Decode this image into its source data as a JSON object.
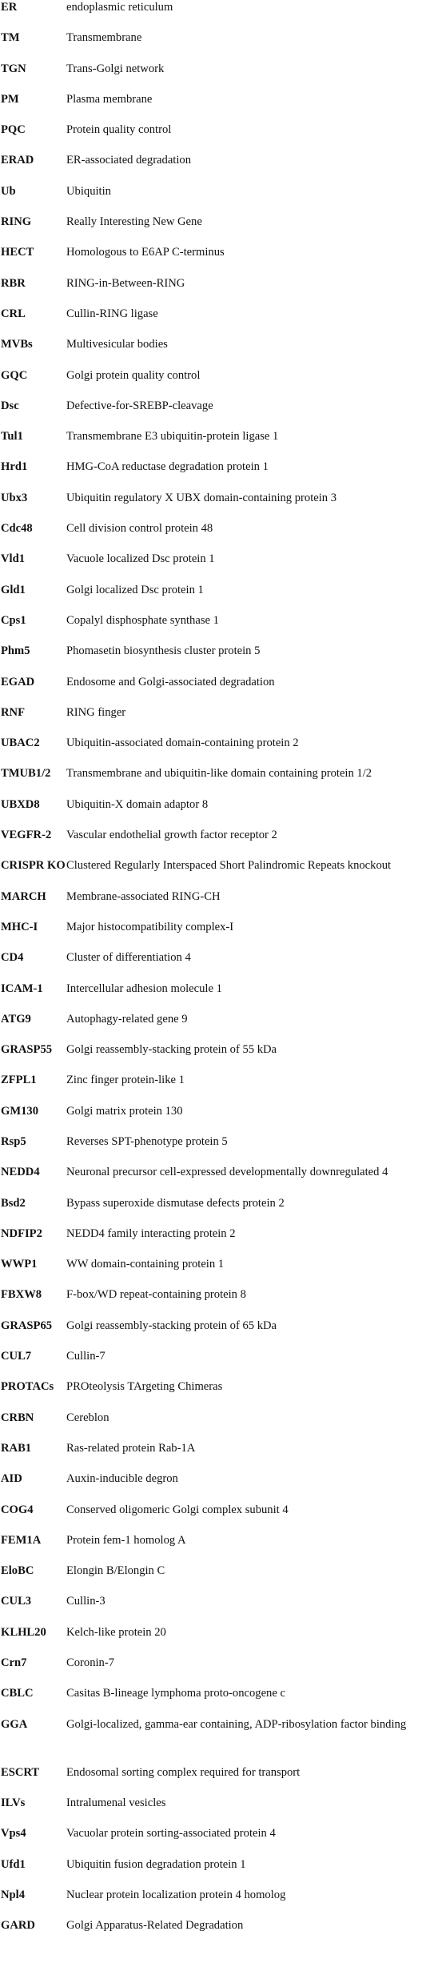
{
  "table": {
    "rows": [
      [
        "ER",
        "endoplasmic reticulum"
      ],
      [
        "TM",
        "Transmembrane"
      ],
      [
        "TGN",
        "Trans-Golgi network"
      ],
      [
        "PM",
        "Plasma membrane"
      ],
      [
        "PQC",
        "Protein quality control"
      ],
      [
        "ERAD",
        "ER-associated degradation"
      ],
      [
        "Ub",
        "Ubiquitin"
      ],
      [
        "RING",
        "Really Interesting New Gene"
      ],
      [
        "HECT",
        "Homologous to E6AP C-terminus"
      ],
      [
        "RBR",
        "RING-in-Between-RING"
      ],
      [
        "CRL",
        "Cullin-RING ligase"
      ],
      [
        "MVBs",
        "Multivesicular bodies"
      ],
      [
        "GQC",
        "Golgi protein quality control"
      ],
      [
        "Dsc",
        "Defective-for-SREBP-cleavage"
      ],
      [
        "Tul1",
        "Transmembrane E3 ubiquitin-protein ligase 1"
      ],
      [
        "Hrd1",
        "HMG-CoA reductase degradation protein 1"
      ],
      [
        "Ubx3",
        "Ubiquitin regulatory X UBX domain-containing protein 3"
      ],
      [
        "Cdc48",
        "Cell division control protein 48"
      ],
      [
        "Vld1",
        "Vacuole localized Dsc protein 1"
      ],
      [
        "Gld1",
        "Golgi localized Dsc protein 1"
      ],
      [
        "Cps1",
        "Copalyl disphosphate synthase 1"
      ],
      [
        "Phm5",
        "Phomasetin biosynthesis cluster protein 5"
      ],
      [
        "EGAD",
        "Endosome and Golgi-associated degradation"
      ],
      [
        "RNF",
        "RING finger"
      ],
      [
        "UBAC2",
        "Ubiquitin-associated domain-containing protein 2"
      ],
      [
        "TMUB1/2",
        "Transmembrane and ubiquitin-like domain containing protein 1/2"
      ],
      [
        "UBXD8",
        "Ubiquitin-X domain adaptor 8"
      ],
      [
        "VEGFR-2",
        "Vascular endothelial growth factor receptor 2"
      ],
      [
        "CRISPR KO",
        "Clustered Regularly Interspaced Short Palindromic Repeats knockout"
      ],
      [
        "MARCH",
        "Membrane-associated RING-CH"
      ],
      [
        "MHC-I",
        "Major histocompatibility complex-I"
      ],
      [
        "CD4",
        "Cluster of differentiation 4"
      ],
      [
        "ICAM-1",
        "Intercellular adhesion molecule 1"
      ],
      [
        "ATG9",
        "Autophagy-related gene 9"
      ],
      [
        "GRASP55",
        "Golgi reassembly-stacking protein of 55 kDa"
      ],
      [
        "ZFPL1",
        "Zinc finger protein-like 1"
      ],
      [
        "GM130",
        "Golgi matrix protein 130"
      ],
      [
        "Rsp5",
        "Reverses SPT-phenotype protein 5"
      ],
      [
        "NEDD4",
        "Neuronal precursor cell-expressed developmentally downregulated 4"
      ],
      [
        "Bsd2",
        "Bypass superoxide dismutase defects protein 2"
      ],
      [
        "NDFIP2",
        "NEDD4 family interacting protein 2"
      ],
      [
        "WWP1",
        "WW domain-containing protein 1"
      ],
      [
        "FBXW8",
        "F-box/WD repeat-containing protein 8"
      ],
      [
        "GRASP65",
        "Golgi reassembly-stacking protein of 65 kDa"
      ],
      [
        "CUL7",
        "Cullin-7"
      ],
      [
        "PROTACs",
        "PROteolysis TArgeting Chimeras"
      ],
      [
        "CRBN",
        "Cereblon"
      ],
      [
        "RAB1",
        "Ras-related protein Rab-1A"
      ],
      [
        "AID",
        "Auxin-inducible degron"
      ],
      [
        "COG4",
        "Conserved oligomeric Golgi complex subunit 4"
      ],
      [
        "FEM1A",
        "Protein fem-1 homolog A"
      ],
      [
        "EloBC",
        "Elongin B/Elongin C"
      ],
      [
        "CUL3",
        "Cullin-3"
      ],
      [
        "KLHL20",
        "Kelch-like protein 20"
      ],
      [
        "Crn7",
        "Coronin-7"
      ],
      [
        "CBLC",
        "Casitas B-lineage lymphoma proto-oncogene c"
      ],
      [
        "GGA",
        "Golgi-localized, gamma-ear containing, ADP-ribosylation factor binding"
      ],
      [
        "ESCRT",
        "Endosomal sorting complex required for transport"
      ],
      [
        "ILVs",
        "Intralumenal vesicles"
      ],
      [
        "Vps4",
        "Vacuolar protein sorting-associated protein 4"
      ],
      [
        "Ufd1",
        "Ubiquitin fusion degradation protein 1"
      ],
      [
        "Npl4",
        "Nuclear protein localization protein 4 homolog"
      ],
      [
        "GARD",
        "Golgi Apparatus-Related Degradation"
      ]
    ]
  }
}
